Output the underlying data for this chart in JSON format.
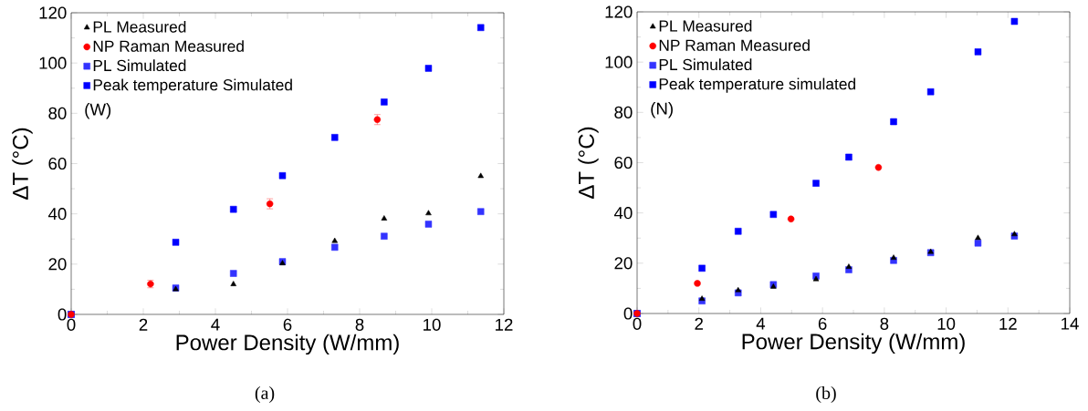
{
  "chart_data": [
    {
      "type": "scatter",
      "xlabel": "Power Density (W/mm)",
      "ylabel": "ΔT (°C)",
      "xlim": [
        0,
        12
      ],
      "ylim": [
        0,
        120
      ],
      "xticks": [
        0,
        2,
        4,
        6,
        8,
        10,
        12
      ],
      "yticks": [
        0,
        20,
        40,
        60,
        80,
        100,
        120
      ],
      "legend": "top left",
      "grid": false,
      "annotations": [
        "(W)",
        "(a)"
      ],
      "series": [
        {
          "name": "PL Measured",
          "color": "#000000",
          "marker": "triangle",
          "x": [
            2.9,
            4.5,
            5.86,
            7.31,
            8.68,
            9.91,
            11.36
          ],
          "values": [
            10,
            12,
            20.3,
            29.2,
            38.1,
            40.2,
            55
          ]
        },
        {
          "name": "NP Raman Measured",
          "color": "#ff0000",
          "marker": "circle",
          "x": [
            0,
            2.2,
            5.51,
            8.49
          ],
          "values": [
            0,
            12.1,
            44,
            77.5
          ],
          "errors": [
            null,
            1.5,
            2,
            2
          ]
        },
        {
          "name": "PL Simulated",
          "color": "#3333ff",
          "marker": "square",
          "x": [
            0,
            2.9,
            4.5,
            5.86,
            7.31,
            8.68,
            9.91,
            11.36
          ],
          "values": [
            0,
            10.5,
            16.3,
            21,
            26.7,
            31.1,
            35.9,
            40.9
          ]
        },
        {
          "name": "Peak temperature Simulated",
          "color": "#0000ff",
          "marker": "square",
          "x": [
            0,
            2.9,
            4.5,
            5.86,
            7.31,
            8.68,
            9.91,
            11.36
          ],
          "values": [
            0,
            28.7,
            41.8,
            55.2,
            70.4,
            84.5,
            97.9,
            114.1
          ]
        }
      ]
    },
    {
      "type": "scatter",
      "xlabel": "Power Density (W/mm)",
      "ylabel": "ΔT (°C)",
      "xlim": [
        0,
        14
      ],
      "ylim": [
        0,
        120
      ],
      "xticks": [
        0,
        2,
        4,
        6,
        8,
        10,
        12,
        14
      ],
      "yticks": [
        0,
        20,
        40,
        60,
        80,
        100,
        120
      ],
      "legend": "top left",
      "grid": false,
      "annotations": [
        "(N)",
        "(b)"
      ],
      "series": [
        {
          "name": "PL Measured",
          "color": "#000000",
          "marker": "triangle",
          "x": [
            2.1,
            3.27,
            4.41,
            5.79,
            6.85,
            8.3,
            9.5,
            11.03,
            12.21
          ],
          "values": [
            5.8,
            9.2,
            10.6,
            13.6,
            18.5,
            22.1,
            24.5,
            30,
            31.5
          ]
        },
        {
          "name": "NP Raman Measured",
          "color": "#ff0000",
          "marker": "circle",
          "x": [
            0,
            1.95,
            4.98,
            7.81
          ],
          "values": [
            0,
            12,
            37.6,
            58.1
          ]
        },
        {
          "name": "PL Simulated",
          "color": "#3333ff",
          "marker": "square",
          "x": [
            0,
            2.1,
            3.27,
            4.41,
            5.79,
            6.85,
            8.3,
            9.5,
            11.03,
            12.21
          ],
          "values": [
            0,
            5,
            8.2,
            11.5,
            14.9,
            17.4,
            21.1,
            24.2,
            28,
            30.8
          ]
        },
        {
          "name": "Peak temperature simulated",
          "color": "#0000ff",
          "marker": "square",
          "x": [
            0,
            2.1,
            3.27,
            4.41,
            5.79,
            6.85,
            8.3,
            9.5,
            11.03,
            12.21
          ],
          "values": [
            0,
            18,
            32.7,
            39.4,
            51.8,
            62.2,
            76.3,
            88.2,
            104.1,
            116.2
          ]
        }
      ]
    }
  ]
}
